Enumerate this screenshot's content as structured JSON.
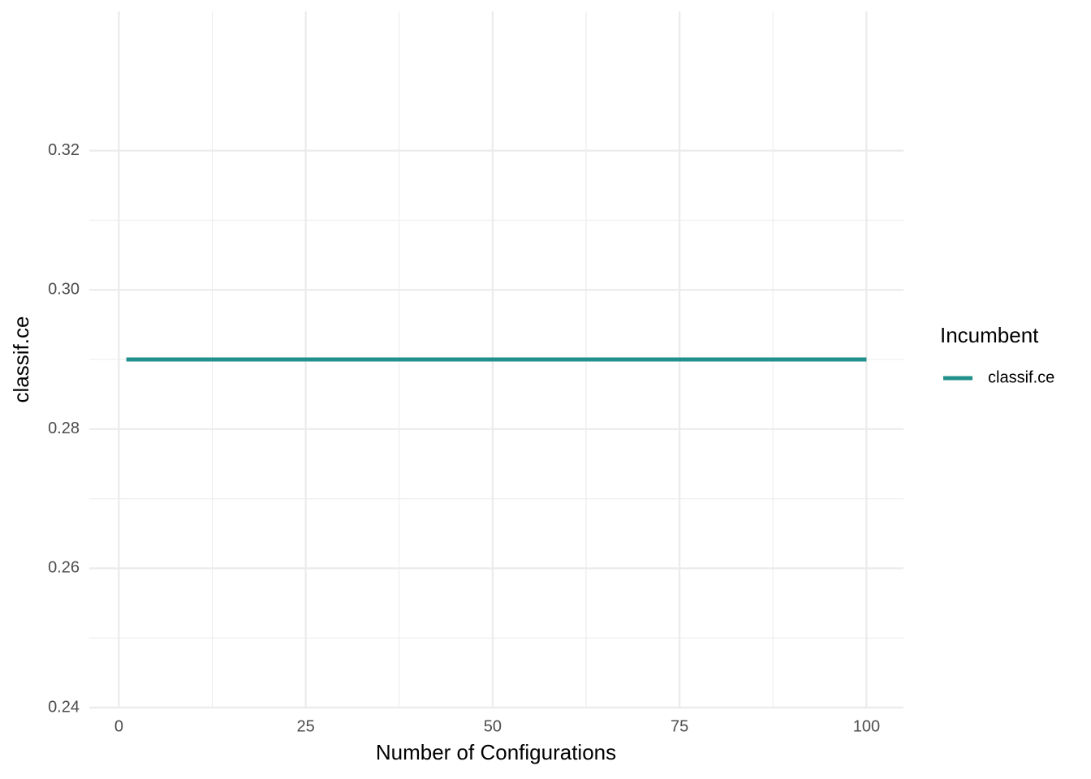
{
  "chart_data": {
    "type": "line",
    "x": [
      1,
      100
    ],
    "series": [
      {
        "name": "classif.ce",
        "color": "#21908c",
        "values": [
          0.29,
          0.29
        ]
      }
    ],
    "xlim": [
      -3.95,
      104.95
    ],
    "xticks": [
      0,
      25,
      50,
      75,
      100
    ],
    "ylim": [
      0.24,
      0.34
    ],
    "yticks": [
      0.24,
      0.26,
      0.28,
      {
        "value": 0.3,
        "label": "0.30"
      },
      0.32
    ],
    "xlabel": "Number of Configurations",
    "ylabel": "classif.ce",
    "legend_title": "Incumbent",
    "legend_position": "right",
    "grid": true
  }
}
